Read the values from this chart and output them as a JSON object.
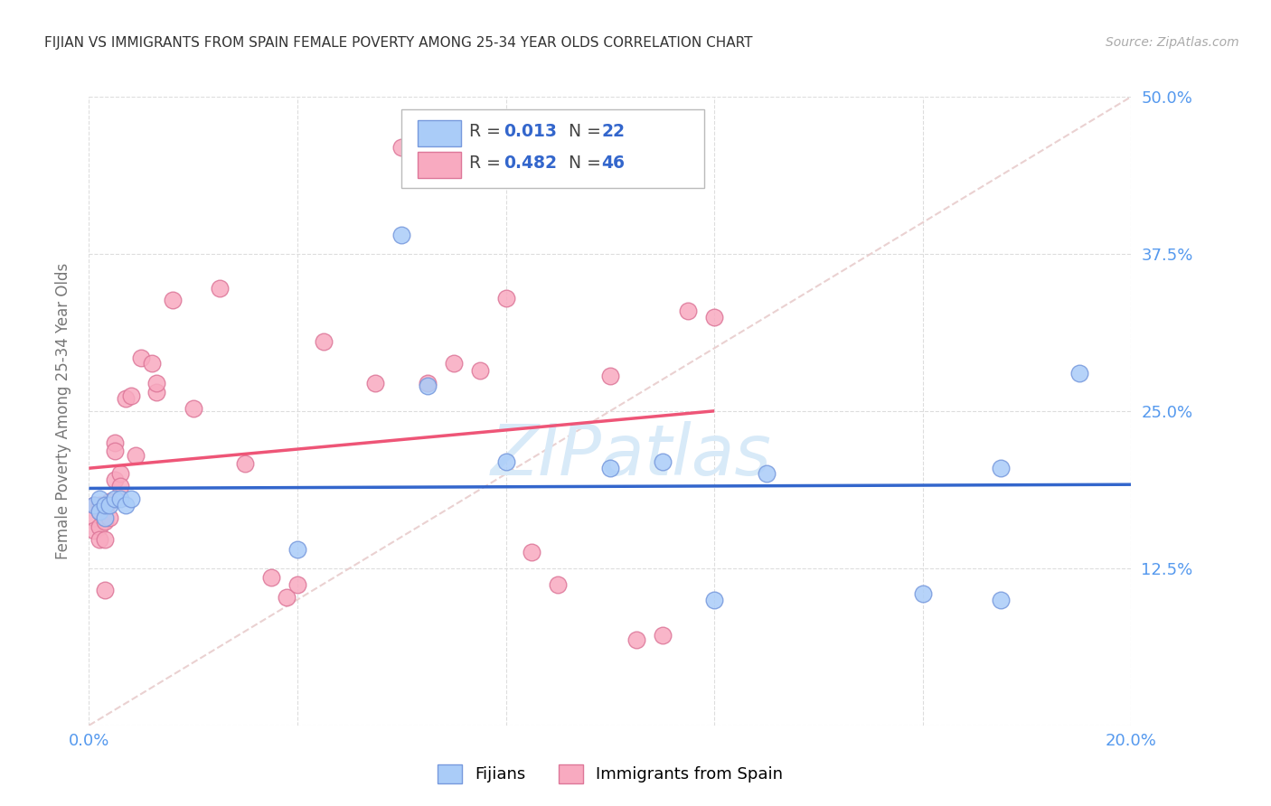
{
  "title": "FIJIAN VS IMMIGRANTS FROM SPAIN FEMALE POVERTY AMONG 25-34 YEAR OLDS CORRELATION CHART",
  "source": "Source: ZipAtlas.com",
  "ylabel": "Female Poverty Among 25-34 Year Olds",
  "xlim": [
    0.0,
    0.2
  ],
  "ylim": [
    0.0,
    0.5
  ],
  "xticks": [
    0.0,
    0.04,
    0.08,
    0.12,
    0.16,
    0.2
  ],
  "yticks": [
    0.0,
    0.125,
    0.25,
    0.375,
    0.5
  ],
  "xtick_labels": [
    "0.0%",
    "",
    "",
    "",
    "",
    "20.0%"
  ],
  "ytick_labels_right": [
    "",
    "12.5%",
    "25.0%",
    "37.5%",
    "50.0%"
  ],
  "legend_r1": "R = 0.013",
  "legend_n1": "N = 22",
  "legend_r2": "R = 0.482",
  "legend_n2": "N = 46",
  "color_fijian": "#aaccf8",
  "color_spain": "#f8aac0",
  "color_fijian_edge": "#7799dd",
  "color_spain_edge": "#dd7799",
  "line_color_fijian": "#3366cc",
  "line_color_spain": "#ee5577",
  "diag_color": "#e8cccc",
  "watermark_color": "#d8eaf8",
  "bg_color": "#ffffff",
  "grid_color": "#dddddd",
  "title_color": "#333333",
  "tick_color": "#5599ee",
  "ylabel_color": "#777777",
  "fijian_x": [
    0.001,
    0.002,
    0.002,
    0.003,
    0.003,
    0.004,
    0.005,
    0.006,
    0.007,
    0.008,
    0.04,
    0.06,
    0.065,
    0.08,
    0.1,
    0.11,
    0.12,
    0.13,
    0.16,
    0.175,
    0.175,
    0.19
  ],
  "fijian_y": [
    0.175,
    0.18,
    0.17,
    0.165,
    0.175,
    0.175,
    0.18,
    0.18,
    0.175,
    0.18,
    0.14,
    0.39,
    0.27,
    0.21,
    0.205,
    0.21,
    0.1,
    0.2,
    0.105,
    0.1,
    0.205,
    0.28
  ],
  "spain_x": [
    0.001,
    0.001,
    0.001,
    0.002,
    0.002,
    0.002,
    0.002,
    0.003,
    0.003,
    0.003,
    0.003,
    0.004,
    0.004,
    0.005,
    0.005,
    0.005,
    0.006,
    0.006,
    0.007,
    0.008,
    0.009,
    0.01,
    0.012,
    0.013,
    0.013,
    0.016,
    0.02,
    0.025,
    0.03,
    0.035,
    0.038,
    0.04,
    0.045,
    0.055,
    0.06,
    0.065,
    0.07,
    0.075,
    0.08,
    0.085,
    0.09,
    0.1,
    0.105,
    0.11,
    0.115,
    0.12
  ],
  "spain_y": [
    0.175,
    0.165,
    0.155,
    0.175,
    0.17,
    0.158,
    0.148,
    0.172,
    0.162,
    0.148,
    0.108,
    0.178,
    0.165,
    0.225,
    0.218,
    0.195,
    0.2,
    0.19,
    0.26,
    0.262,
    0.215,
    0.292,
    0.288,
    0.265,
    0.272,
    0.338,
    0.252,
    0.348,
    0.208,
    0.118,
    0.102,
    0.112,
    0.305,
    0.272,
    0.46,
    0.272,
    0.288,
    0.282,
    0.34,
    0.138,
    0.112,
    0.278,
    0.068,
    0.072,
    0.33,
    0.325
  ]
}
